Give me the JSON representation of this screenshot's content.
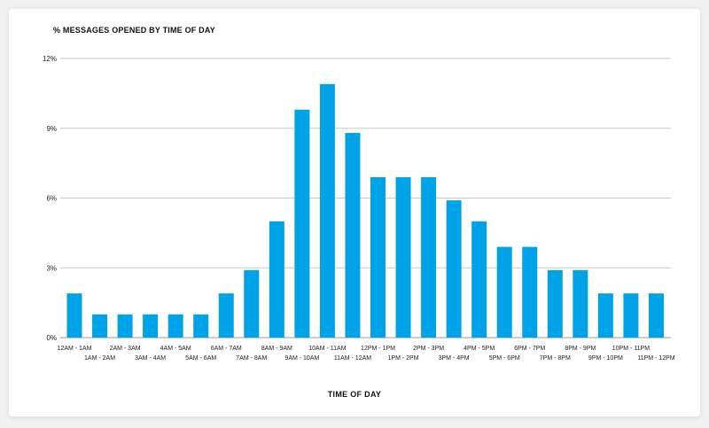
{
  "chart_data": {
    "type": "bar",
    "title": "% MESSAGES OPENED BY TIME OF DAY",
    "xlabel": "TIME OF DAY",
    "ylabel": "",
    "ylim": [
      0,
      12
    ],
    "yticks": [
      0,
      3,
      6,
      9,
      12
    ],
    "ytick_labels": [
      "0%",
      "3%",
      "6%",
      "9%",
      "12%"
    ],
    "grid": true,
    "bar_color": "#00a3e8",
    "categories": [
      "12AM - 1AM",
      "1AM - 2AM",
      "2AM - 3AM",
      "3AM - 4AM",
      "4AM - 5AM",
      "5AM - 6AM",
      "6AM - 7AM",
      "7AM - 8AM",
      "8AM - 9AM",
      "9AM - 10AM",
      "10AM - 11AM",
      "11AM - 12AM",
      "12PM - 1PM",
      "1PM - 2PM",
      "2PM - 3PM",
      "3PM - 4PM",
      "4PM - 5PM",
      "5PM - 6PM",
      "6PM - 7PM",
      "7PM - 8PM",
      "8PM - 9PM",
      "9PM - 10PM",
      "10PM - 11PM",
      "11PM - 12PM"
    ],
    "values": [
      1.9,
      1.0,
      1.0,
      1.0,
      1.0,
      1.0,
      1.9,
      2.9,
      5.0,
      9.8,
      10.9,
      8.8,
      6.9,
      6.9,
      6.9,
      5.9,
      5.0,
      3.9,
      3.9,
      2.9,
      2.9,
      1.9,
      1.9,
      1.9
    ]
  }
}
